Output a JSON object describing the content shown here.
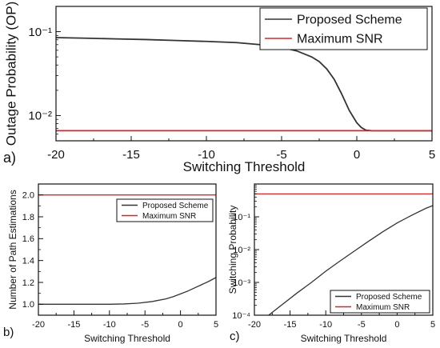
{
  "chart_data": [
    {
      "panel": "a)",
      "type": "line",
      "xlabel": "Switching Threshold",
      "ylabel": "Outage Probability (OP)",
      "xlim": [
        -20,
        5
      ],
      "ylim": [
        0.005,
        0.2
      ],
      "yscale": "log",
      "xticks": [
        -20,
        -15,
        -10,
        -5,
        0,
        5
      ],
      "xtick_labels": [
        "-20",
        "-15",
        "-10",
        "-5",
        "0",
        "5"
      ],
      "yticks": [
        0.01,
        0.1
      ],
      "ytick_labels": [
        "10⁻²",
        "10⁻¹"
      ],
      "grid": false,
      "legend_position": "top-right",
      "series": [
        {
          "name": "Proposed Scheme",
          "color": "#333333",
          "x": [
            -20,
            -18,
            -16,
            -14,
            -12,
            -10,
            -8,
            -6,
            -5,
            -4,
            -3,
            -2.5,
            -2,
            -1.5,
            -1,
            -0.5,
            0,
            0.3,
            0.6,
            1,
            5
          ],
          "y": [
            0.085,
            0.0835,
            0.082,
            0.0805,
            0.0785,
            0.0765,
            0.074,
            0.069,
            0.065,
            0.059,
            0.05,
            0.044,
            0.036,
            0.027,
            0.018,
            0.0115,
            0.0082,
            0.0072,
            0.0067,
            0.0066,
            0.0066
          ]
        },
        {
          "name": "Maximum SNR",
          "color": "#d62728",
          "x": [
            -20,
            5
          ],
          "y": [
            0.0066,
            0.0066
          ]
        }
      ]
    },
    {
      "panel": "b)",
      "type": "line",
      "xlabel": "Switching Threshold",
      "ylabel": "Number of Path Estimations",
      "xlim": [
        -20,
        5
      ],
      "ylim": [
        0.9,
        2.1
      ],
      "yscale": "linear",
      "xticks": [
        -20,
        -15,
        -10,
        -5,
        0,
        5
      ],
      "xtick_labels": [
        "-20",
        "-15",
        "-10",
        "-5",
        "0",
        "5"
      ],
      "yticks": [
        1.0,
        1.2,
        1.4,
        1.6,
        1.8,
        2.0
      ],
      "ytick_labels": [
        "1.0",
        "1.2",
        "1.4",
        "1.6",
        "1.8",
        "2.0"
      ],
      "grid": false,
      "legend_position": "top-right",
      "series": [
        {
          "name": "Proposed Scheme",
          "color": "#333333",
          "x": [
            -20,
            -15,
            -10,
            -8,
            -6,
            -4,
            -2,
            -1,
            0,
            1,
            2,
            3,
            4,
            5
          ],
          "y": [
            1.0,
            1.0,
            1.0,
            1.003,
            1.01,
            1.025,
            1.05,
            1.07,
            1.095,
            1.12,
            1.15,
            1.18,
            1.21,
            1.245
          ]
        },
        {
          "name": "Maximum SNR",
          "color": "#d62728",
          "x": [
            -20,
            5
          ],
          "y": [
            2.0,
            2.0
          ]
        }
      ]
    },
    {
      "panel": "c)",
      "type": "line",
      "xlabel": "Switching Threshold",
      "ylabel": "Switching Probability",
      "xlim": [
        -20,
        5
      ],
      "ylim": [
        0.0001,
        1
      ],
      "yscale": "log",
      "xticks": [
        -20,
        -15,
        -10,
        -5,
        0,
        5
      ],
      "xtick_labels": [
        "-20",
        "-15",
        "-10",
        "-5",
        "0",
        "5"
      ],
      "yticks": [
        0.0001,
        0.001,
        0.01,
        0.1
      ],
      "ytick_labels": [
        "10⁻⁴",
        "10⁻³",
        "10⁻²",
        "10⁻¹"
      ],
      "grid": false,
      "legend_position": "bottom-right",
      "series": [
        {
          "name": "Proposed Scheme",
          "color": "#333333",
          "x": [
            -18,
            -16,
            -14,
            -12,
            -10,
            -8,
            -6,
            -4,
            -2,
            0,
            2,
            4,
            5
          ],
          "y": [
            0.0001,
            0.00022,
            0.00048,
            0.001,
            0.0022,
            0.0045,
            0.009,
            0.018,
            0.035,
            0.065,
            0.11,
            0.18,
            0.22
          ]
        },
        {
          "name": "Maximum SNR",
          "color": "#d62728",
          "x": [
            -20,
            5
          ],
          "y": [
            0.5,
            0.5
          ]
        }
      ]
    }
  ]
}
